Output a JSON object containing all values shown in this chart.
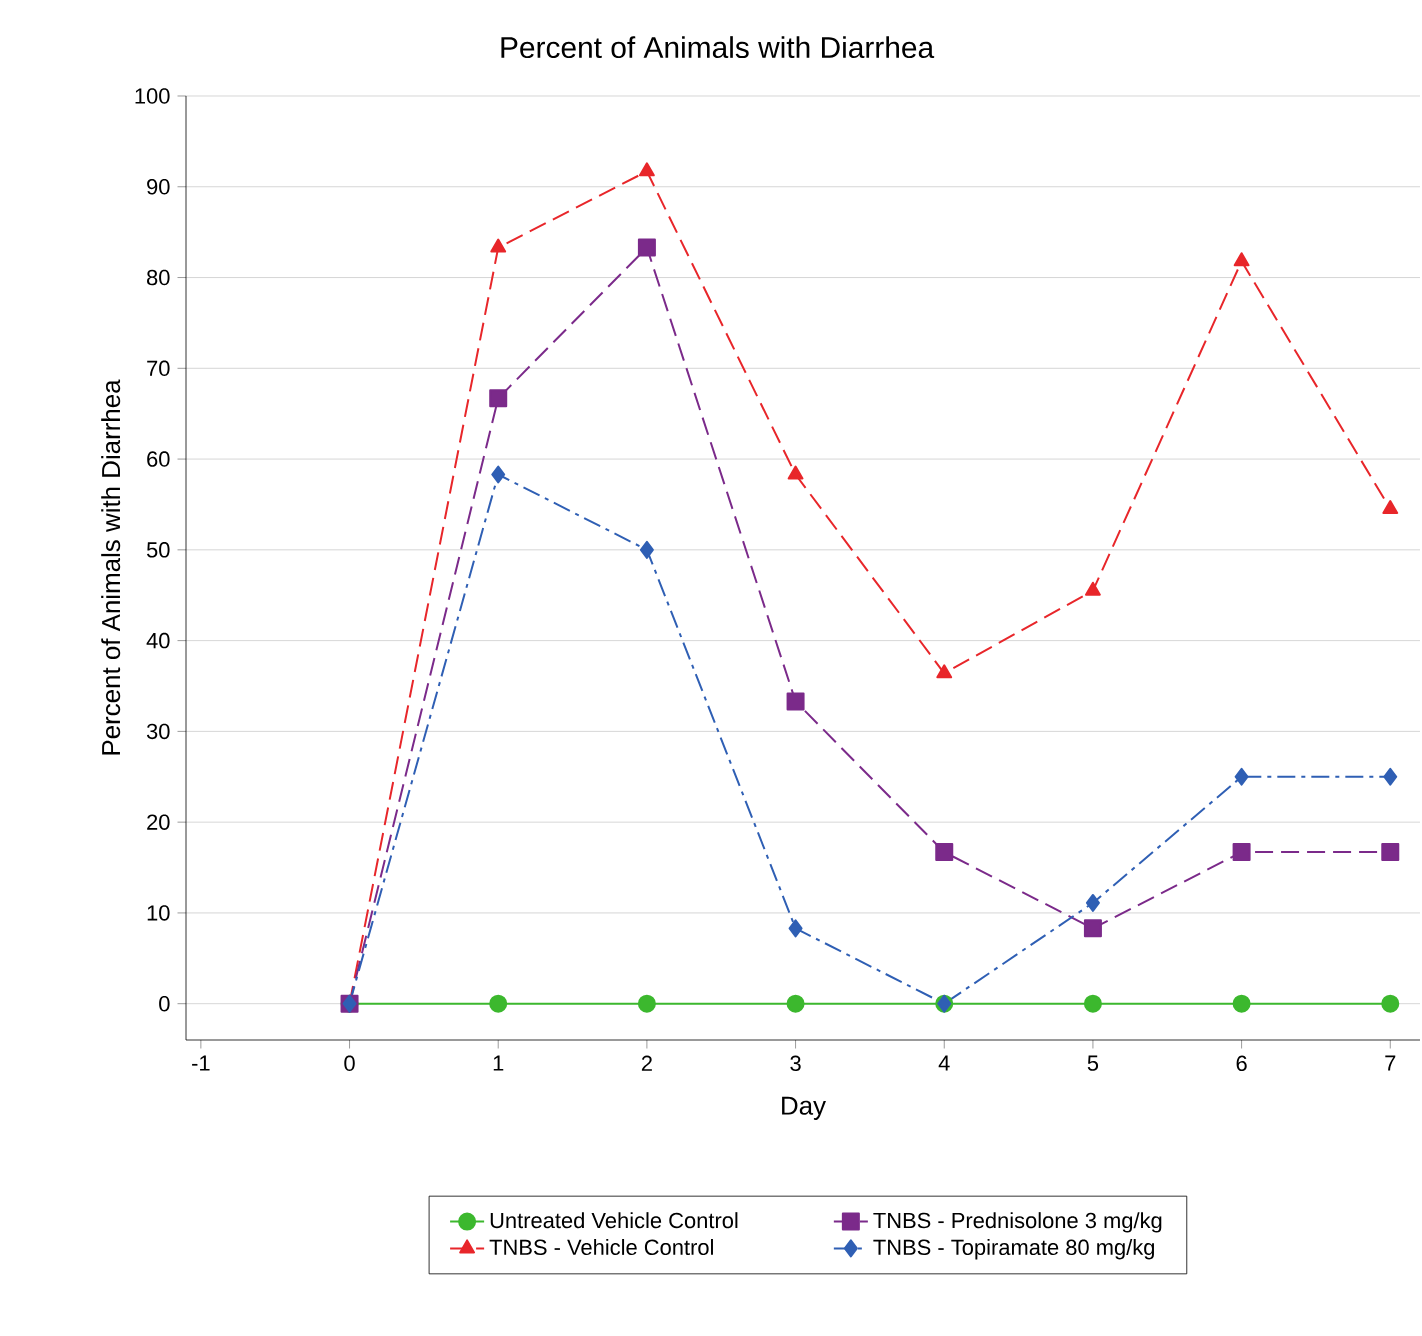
{
  "chart_data": {
    "type": "line",
    "title": "Percent of Animals with Diarrhea",
    "xlabel": "Day",
    "ylabel": "Percent of Animals with Diarrhea",
    "x": [
      0,
      1,
      2,
      3,
      4,
      5,
      6,
      7
    ],
    "series": [
      {
        "name": "Untreated Vehicle Control",
        "color": "#3cb82e",
        "marker": "circle",
        "line_style": "solid",
        "values": [
          0,
          0,
          0,
          0,
          0,
          0,
          0,
          0
        ]
      },
      {
        "name": "TNBS - Vehicle Control",
        "color": "#e8262a",
        "marker": "triangle",
        "line_style": "dashed",
        "values": [
          0,
          83.3,
          91.7,
          58.3,
          36.4,
          45.5,
          81.8,
          54.5
        ]
      },
      {
        "name": "TNBS - Prednisolone 3 mg/kg",
        "color": "#7b2a8a",
        "marker": "square",
        "line_style": "dashed",
        "values": [
          0,
          66.7,
          83.3,
          33.3,
          16.7,
          8.3,
          16.7,
          16.7
        ]
      },
      {
        "name": "TNBS - Topiramate 80 mg/kg",
        "color": "#2f5fb4",
        "marker": "diamond",
        "line_style": "dashdot",
        "values": [
          0,
          58.3,
          50,
          8.3,
          0,
          11.1,
          25,
          25
        ]
      }
    ],
    "xlim": [
      -1.1,
      7.2
    ],
    "ylim": [
      -4,
      100
    ],
    "xticks": [
      -1,
      0,
      1,
      2,
      3,
      4,
      5,
      6,
      7
    ],
    "yticks": [
      0,
      10,
      20,
      30,
      40,
      50,
      60,
      70,
      80,
      90,
      100
    ],
    "grid": "y",
    "legend": "bottom"
  }
}
